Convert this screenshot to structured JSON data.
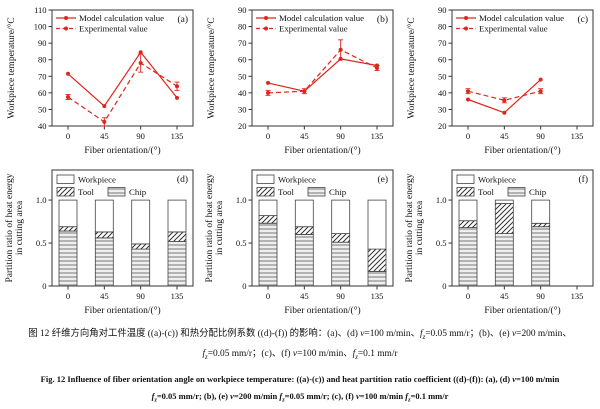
{
  "figure": {
    "captions": {
      "zh": [
        [
          {
            "t": "图 12  纤维方向角对工件温度 ((a)-(c)) 和热分配比例系数 ((d)-(f)) 的影响：(a)、(d) "
          },
          {
            "t": "v",
            "s": "i"
          },
          {
            "t": "=100 m/min、"
          },
          {
            "t": "f",
            "s": "i"
          },
          {
            "t": "z",
            "s": "isub"
          },
          {
            "t": "=0.05 mm/r；(b)、(e) "
          },
          {
            "t": "v",
            "s": "i"
          },
          {
            "t": "=200 m/min、"
          }
        ],
        [
          {
            "t": "f",
            "s": "i"
          },
          {
            "t": "z",
            "s": "isub"
          },
          {
            "t": "=0.05 mm/r；(c)、(f) "
          },
          {
            "t": "v",
            "s": "i"
          },
          {
            "t": "=100 m/min、"
          },
          {
            "t": "f",
            "s": "i"
          },
          {
            "t": "z",
            "s": "isub"
          },
          {
            "t": "=0.1 mm/r"
          }
        ]
      ],
      "en": [
        [
          {
            "t": "Fig. 12  Influence of fiber orientation angle on workpiece temperature: ((a)-(c)) and heat partition ratio coefficient ((d)-(f)): (a), (d) "
          },
          {
            "t": "v",
            "s": "i"
          },
          {
            "t": "=100 m/min"
          }
        ],
        [
          {
            "t": "f",
            "s": "i"
          },
          {
            "t": "z",
            "s": "isub"
          },
          {
            "t": "=0.05 mm/r; (b), (e) "
          },
          {
            "t": "v",
            "s": "i"
          },
          {
            "t": "=200 m/min "
          },
          {
            "t": "f",
            "s": "i"
          },
          {
            "t": "z",
            "s": "isub"
          },
          {
            "t": "=0.05 mm/r; (c), (f) "
          },
          {
            "t": "v",
            "s": "i"
          },
          {
            "t": "=100 m/min "
          },
          {
            "t": "f",
            "s": "i"
          },
          {
            "t": "z",
            "s": "isub"
          },
          {
            "t": "=0.1 mm/r"
          }
        ]
      ]
    }
  },
  "chart_data": [
    {
      "id": "a",
      "type": "line",
      "panel_label": "(a)",
      "xlabel": "Fiber orientation/(°)",
      "ylabel": "Workpiece temperature/°C",
      "ylim": [
        40,
        110
      ],
      "ytick_step": 10,
      "xticks": [
        0,
        45,
        90,
        135
      ],
      "legend": [
        "Model calculation value",
        "Experimental value"
      ],
      "line_color": "#e0251c",
      "series": [
        {
          "name": "Model calculation value",
          "style": "solid",
          "x": [
            0,
            45,
            90,
            135
          ],
          "values": [
            71.5,
            52,
            84.5,
            57
          ]
        },
        {
          "name": "Experimental value",
          "style": "dashed",
          "x": [
            0,
            45,
            90,
            135
          ],
          "values": [
            57.5,
            42.5,
            78,
            64
          ],
          "errors": [
            1.5,
            2.5,
            5.5,
            2.5
          ]
        }
      ]
    },
    {
      "id": "b",
      "type": "line",
      "panel_label": "(b)",
      "xlabel": "Fiber orientation/(°)",
      "ylabel": "Workpiece temperature/°C",
      "ylim": [
        20,
        90
      ],
      "ytick_step": 10,
      "xticks": [
        0,
        45,
        90,
        135
      ],
      "legend": [
        "Model calculation value",
        "Experimental value"
      ],
      "line_color": "#e0251c",
      "series": [
        {
          "name": "Model calculation value",
          "style": "solid",
          "x": [
            0,
            45,
            90,
            135
          ],
          "values": [
            46,
            41,
            60.5,
            56.5
          ]
        },
        {
          "name": "Experimental value",
          "style": "dashed",
          "x": [
            0,
            45,
            90,
            135
          ],
          "values": [
            40,
            41,
            66,
            55
          ],
          "errors": [
            1.5,
            1.5,
            6,
            1.5
          ]
        }
      ]
    },
    {
      "id": "c",
      "type": "line",
      "panel_label": "(c)",
      "xlabel": "Fiber orientation/(°)",
      "ylabel": "Workpiece temperature/°C",
      "ylim": [
        20,
        90
      ],
      "ytick_step": 10,
      "xticks": [
        0,
        45,
        90,
        135
      ],
      "legend": [
        "Model calculation value",
        "Experimental value"
      ],
      "line_color": "#e0251c",
      "series": [
        {
          "name": "Model calculation value",
          "style": "solid",
          "x": [
            0,
            45,
            90
          ],
          "values": [
            36,
            28,
            48
          ]
        },
        {
          "name": "Experimental value",
          "style": "dashed",
          "x": [
            0,
            45,
            90
          ],
          "values": [
            41,
            35.5,
            41
          ],
          "errors": [
            1.5,
            1.5,
            1.5
          ]
        }
      ]
    },
    {
      "id": "d",
      "type": "bar",
      "panel_label": "(d)",
      "xlabel": "Fiber orientation/(°)",
      "ylabel_lines": [
        "Partition ratio of heat energy",
        "in cutting area"
      ],
      "ylim": [
        0,
        1.35
      ],
      "yticks": [
        0,
        0.5,
        1.0
      ],
      "ytick_labels": [
        "0",
        "0.5",
        "1.0"
      ],
      "xticks": [
        0,
        45,
        90,
        135
      ],
      "legend": [
        "Workpiece",
        "Tool",
        "Chip"
      ],
      "categories": [
        0,
        45,
        90,
        135
      ],
      "series": [
        {
          "name": "Chip",
          "values": [
            0.64,
            0.56,
            0.43,
            0.52
          ]
        },
        {
          "name": "Tool",
          "values": [
            0.05,
            0.07,
            0.06,
            0.11
          ]
        },
        {
          "name": "Workpiece",
          "values": [
            0.31,
            0.37,
            0.51,
            0.37
          ]
        }
      ]
    },
    {
      "id": "e",
      "type": "bar",
      "panel_label": "(e)",
      "xlabel": "Fiber orientation/(°)",
      "ylabel_lines": [
        "Partition ratio of heat energy",
        "in cutting area"
      ],
      "ylim": [
        0,
        1.35
      ],
      "yticks": [
        0,
        0.5,
        1.0
      ],
      "ytick_labels": [
        "0",
        "0.5",
        "1.0"
      ],
      "xticks": [
        0,
        45,
        90,
        135
      ],
      "legend": [
        "Workpiece",
        "Tool",
        "Chip"
      ],
      "categories": [
        0,
        45,
        90,
        135
      ],
      "series": [
        {
          "name": "Chip",
          "values": [
            0.73,
            0.6,
            0.51,
            0.17
          ]
        },
        {
          "name": "Tool",
          "values": [
            0.09,
            0.09,
            0.1,
            0.26
          ]
        },
        {
          "name": "Workpiece",
          "values": [
            0.18,
            0.31,
            0.39,
            0.57
          ]
        }
      ]
    },
    {
      "id": "f",
      "type": "bar",
      "panel_label": "(f)",
      "xlabel": "Fiber orientation/(°)",
      "ylabel_lines": [
        "Partition ratio of heat energy",
        "in cutting area"
      ],
      "ylim": [
        0,
        1.35
      ],
      "yticks": [
        0,
        0.5,
        1.0
      ],
      "ytick_labels": [
        "0",
        "0.5",
        "1.0"
      ],
      "xticks": [
        0,
        45,
        90,
        135
      ],
      "legend": [
        "Workpiece",
        "Tool",
        "Chip"
      ],
      "categories": [
        0,
        45,
        90
      ],
      "series": [
        {
          "name": "Chip",
          "values": [
            0.68,
            0.61,
            0.69
          ]
        },
        {
          "name": "Tool",
          "values": [
            0.08,
            0.35,
            0.04
          ]
        },
        {
          "name": "Workpiece",
          "values": [
            0.24,
            0.04,
            0.27
          ]
        }
      ]
    }
  ]
}
